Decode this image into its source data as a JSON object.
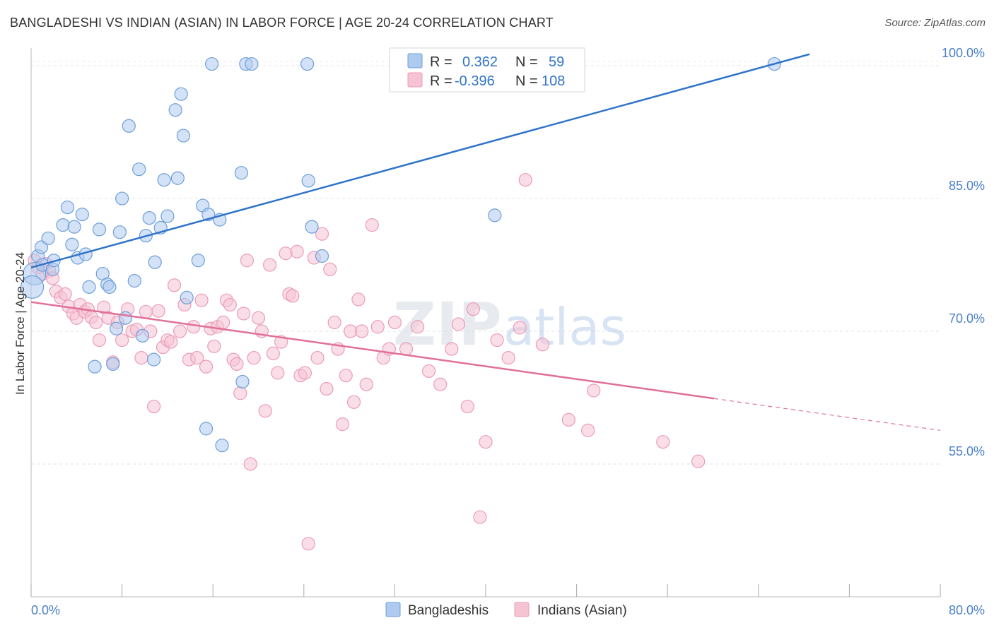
{
  "title": "BANGLADESHI VS INDIAN (ASIAN) IN LABOR FORCE | AGE 20-24 CORRELATION CHART",
  "source": "Source: ZipAtlas.com",
  "watermark": {
    "zip": "ZIP",
    "atlas": "atlas"
  },
  "colors": {
    "blue": "#2f74c8",
    "blue_fill": "#aecbef",
    "blue_stroke": "#6d9fd9",
    "pink": "#e0709a",
    "pink_fill": "#f6c3d3",
    "pink_stroke": "#ec9bb8",
    "axis_label": "#4a7fc8"
  },
  "legend": {
    "rows": [
      {
        "r_label": "R =",
        "r_value": "0.362",
        "n_label": "N =",
        "n_value": "59"
      },
      {
        "r_label": "R =",
        "r_value": "-0.396",
        "n_label": "N =",
        "n_value": "108"
      }
    ]
  },
  "bottom_legend": [
    "Bangladeshis",
    "Indians (Asian)"
  ],
  "chart_data": {
    "type": "scatter",
    "title": "BANGLADESHI VS INDIAN (ASIAN) IN LABOR FORCE | AGE 20-24 CORRELATION CHART",
    "xlabel": "",
    "ylabel": "In Labor Force | Age 20-24",
    "xlim": [
      0,
      80
    ],
    "ylim": [
      40,
      102
    ],
    "x_tick_labels": [
      "0.0%",
      "80.0%"
    ],
    "y_ticks": [
      55,
      70,
      85,
      100
    ],
    "y_tick_labels": [
      "55.0%",
      "70.0%",
      "85.0%",
      "100.0%"
    ],
    "series": [
      {
        "name": "Bangladeshis",
        "r": 0.362,
        "n": 59,
        "trend": {
          "x0": 0,
          "y0": 77.2,
          "x1": 68.5,
          "y1": 101.3,
          "dash_to": null
        },
        "points": [
          [
            0.3,
            76.5
          ],
          [
            0.6,
            78.5
          ],
          [
            0.9,
            79.5
          ],
          [
            1.0,
            77.5
          ],
          [
            1.5,
            80.5
          ],
          [
            1.9,
            77.0
          ],
          [
            2.0,
            78.0
          ],
          [
            2.8,
            82.0
          ],
          [
            3.2,
            84.0
          ],
          [
            3.6,
            79.8
          ],
          [
            3.8,
            81.8
          ],
          [
            4.1,
            78.3
          ],
          [
            4.5,
            83.2
          ],
          [
            4.8,
            78.7
          ],
          [
            5.1,
            75.0
          ],
          [
            5.6,
            66.0
          ],
          [
            6.0,
            81.5
          ],
          [
            6.3,
            76.5
          ],
          [
            6.7,
            75.3
          ],
          [
            6.9,
            75.0
          ],
          [
            7.2,
            66.3
          ],
          [
            7.5,
            70.3
          ],
          [
            7.8,
            81.2
          ],
          [
            8.0,
            85.0
          ],
          [
            8.3,
            71.5
          ],
          [
            8.6,
            93.2
          ],
          [
            9.1,
            75.7
          ],
          [
            9.5,
            88.3
          ],
          [
            9.8,
            69.5
          ],
          [
            10.1,
            80.8
          ],
          [
            10.4,
            82.8
          ],
          [
            10.8,
            66.8
          ],
          [
            10.9,
            77.8
          ],
          [
            11.4,
            81.7
          ],
          [
            11.7,
            87.1
          ],
          [
            12.0,
            83.0
          ],
          [
            12.7,
            95.0
          ],
          [
            12.9,
            87.3
          ],
          [
            13.2,
            96.8
          ],
          [
            13.4,
            92.1
          ],
          [
            13.7,
            73.8
          ],
          [
            14.7,
            78.0
          ],
          [
            15.1,
            84.2
          ],
          [
            15.4,
            59.0
          ],
          [
            15.6,
            83.2
          ],
          [
            15.9,
            100.2
          ],
          [
            16.6,
            82.6
          ],
          [
            16.8,
            57.1
          ],
          [
            18.5,
            87.9
          ],
          [
            18.6,
            64.3
          ],
          [
            18.9,
            100.2
          ],
          [
            19.4,
            100.2
          ],
          [
            24.3,
            100.2
          ],
          [
            24.4,
            87.0
          ],
          [
            24.7,
            81.8
          ],
          [
            25.6,
            78.5
          ],
          [
            40.8,
            83.1
          ],
          [
            65.4,
            100.2
          ],
          [
            0.1,
            75.0
          ]
        ]
      },
      {
        "name": "Indians (Asian)",
        "r": -0.396,
        "n": 108,
        "trend": {
          "x0": 0,
          "y0": 73.3,
          "x1": 60.1,
          "y1": 62.4,
          "dash_to": [
            80,
            58.8
          ]
        },
        "points": [
          [
            0.3,
            78.0
          ],
          [
            0.6,
            77.2
          ],
          [
            1.0,
            76.5
          ],
          [
            1.3,
            77.6
          ],
          [
            1.6,
            76.8
          ],
          [
            1.9,
            76.0
          ],
          [
            2.2,
            74.5
          ],
          [
            2.6,
            73.8
          ],
          [
            3.0,
            74.2
          ],
          [
            3.3,
            72.8
          ],
          [
            3.7,
            72.0
          ],
          [
            4.0,
            71.5
          ],
          [
            4.3,
            73.0
          ],
          [
            4.7,
            72.2
          ],
          [
            5.0,
            72.5
          ],
          [
            5.3,
            71.6
          ],
          [
            5.7,
            71.0
          ],
          [
            6.0,
            69.0
          ],
          [
            6.4,
            72.7
          ],
          [
            6.8,
            71.5
          ],
          [
            7.2,
            66.5
          ],
          [
            7.6,
            71.0
          ],
          [
            8.0,
            69.0
          ],
          [
            8.5,
            72.5
          ],
          [
            8.9,
            70.0
          ],
          [
            9.3,
            70.2
          ],
          [
            9.7,
            67.0
          ],
          [
            10.1,
            72.2
          ],
          [
            10.5,
            70.0
          ],
          [
            10.8,
            61.5
          ],
          [
            11.2,
            72.3
          ],
          [
            11.6,
            68.2
          ],
          [
            12.0,
            69.0
          ],
          [
            12.3,
            68.8
          ],
          [
            12.6,
            75.2
          ],
          [
            13.1,
            70.0
          ],
          [
            13.5,
            73.0
          ],
          [
            13.9,
            66.8
          ],
          [
            14.3,
            70.5
          ],
          [
            14.6,
            67.0
          ],
          [
            15.0,
            73.5
          ],
          [
            15.4,
            66.0
          ],
          [
            15.8,
            70.3
          ],
          [
            16.1,
            68.3
          ],
          [
            16.4,
            70.5
          ],
          [
            16.9,
            71.0
          ],
          [
            17.2,
            73.5
          ],
          [
            17.5,
            73.0
          ],
          [
            17.8,
            66.8
          ],
          [
            18.1,
            66.3
          ],
          [
            18.4,
            63.0
          ],
          [
            18.7,
            72.0
          ],
          [
            19.0,
            78.0
          ],
          [
            19.3,
            55.0
          ],
          [
            19.6,
            67.0
          ],
          [
            20.0,
            71.5
          ],
          [
            20.3,
            70.0
          ],
          [
            20.6,
            61.0
          ],
          [
            21.0,
            77.5
          ],
          [
            21.3,
            67.5
          ],
          [
            21.7,
            65.3
          ],
          [
            22.0,
            68.8
          ],
          [
            22.4,
            78.8
          ],
          [
            22.7,
            74.2
          ],
          [
            23.0,
            74.0
          ],
          [
            23.4,
            79.0
          ],
          [
            23.7,
            65.0
          ],
          [
            24.1,
            65.3
          ],
          [
            24.4,
            46.0
          ],
          [
            24.9,
            78.3
          ],
          [
            25.2,
            67.0
          ],
          [
            25.6,
            81.0
          ],
          [
            26.0,
            63.5
          ],
          [
            26.3,
            77.0
          ],
          [
            26.7,
            71.0
          ],
          [
            27.0,
            68.0
          ],
          [
            27.4,
            59.5
          ],
          [
            27.7,
            65.0
          ],
          [
            28.1,
            70.0
          ],
          [
            28.4,
            62.0
          ],
          [
            28.8,
            73.6
          ],
          [
            29.1,
            70.0
          ],
          [
            29.5,
            64.0
          ],
          [
            30.0,
            82.0
          ],
          [
            30.5,
            70.5
          ],
          [
            31.0,
            67.0
          ],
          [
            31.5,
            68.0
          ],
          [
            32.0,
            71.0
          ],
          [
            33.0,
            68.0
          ],
          [
            34.0,
            70.5
          ],
          [
            35.0,
            65.5
          ],
          [
            36.0,
            64.0
          ],
          [
            37.0,
            68.0
          ],
          [
            37.6,
            70.8
          ],
          [
            38.4,
            61.5
          ],
          [
            38.9,
            72.5
          ],
          [
            39.5,
            49.0
          ],
          [
            40.0,
            57.5
          ],
          [
            41.0,
            69.0
          ],
          [
            42.0,
            67.0
          ],
          [
            43.0,
            70.4
          ],
          [
            43.5,
            87.1
          ],
          [
            45.0,
            68.5
          ],
          [
            47.3,
            60.0
          ],
          [
            49.0,
            58.8
          ],
          [
            49.5,
            63.3
          ],
          [
            55.6,
            57.5
          ],
          [
            58.7,
            55.3
          ]
        ]
      }
    ]
  }
}
